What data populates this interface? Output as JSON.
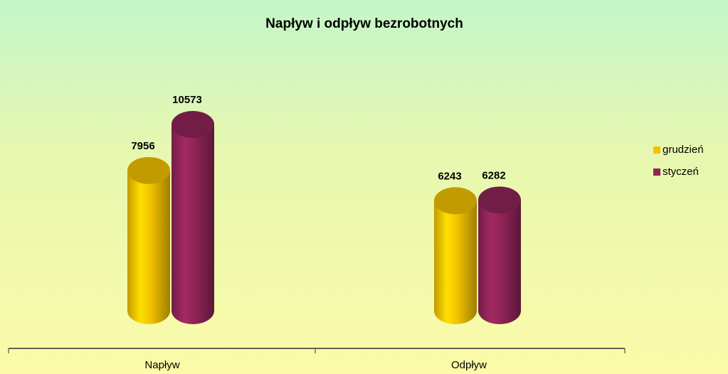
{
  "chart_data": {
    "type": "bar3d-cylinder",
    "title": "Napływ i odpływ bezrobotnych",
    "categories": [
      "Napływ",
      "Odpływ"
    ],
    "series": [
      {
        "name": "grudzień",
        "color": "#f2c200",
        "values": [
          7956,
          6243
        ]
      },
      {
        "name": "styczeń",
        "color": "#8e2456",
        "values": [
          10573,
          6282
        ]
      }
    ],
    "legend": "right"
  }
}
